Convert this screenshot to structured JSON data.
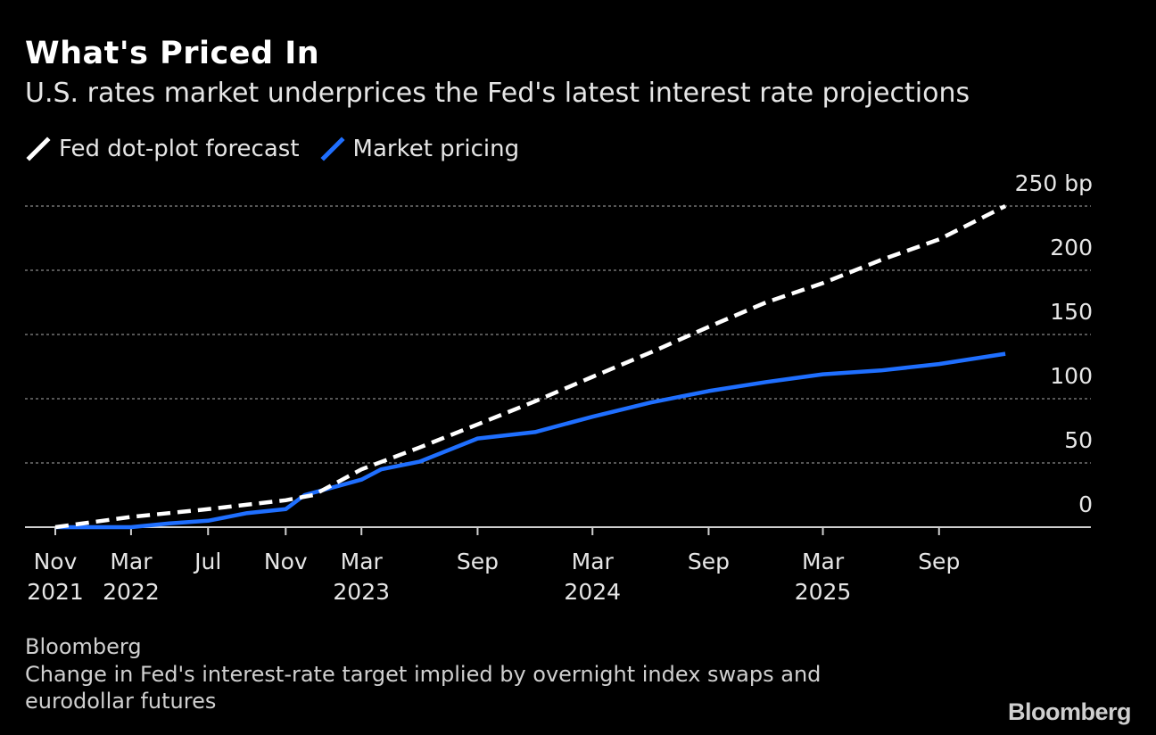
{
  "header": {
    "title": "What's Priced In",
    "subtitle": "U.S. rates market underprices the Fed's latest interest rate projections"
  },
  "legend": [
    {
      "label": "Fed dot-plot forecast",
      "color": "#ffffff"
    },
    {
      "label": "Market pricing",
      "color": "#1f6fff"
    }
  ],
  "footer": {
    "source": "Bloomberg",
    "note_line1": "Change in Fed's interest-rate target implied by overnight index swaps and",
    "note_line2": "eurodollar futures",
    "brand": "Bloomberg"
  },
  "chart_data": {
    "type": "line",
    "x_axis": {
      "range": [
        "2021-11-01",
        "2026-01-15"
      ],
      "ticks": [
        {
          "date": "2021-11-01",
          "label": "Nov",
          "year": "2021"
        },
        {
          "date": "2022-03-01",
          "label": "Mar",
          "year": "2022"
        },
        {
          "date": "2022-07-01",
          "label": "Jul",
          "year": ""
        },
        {
          "date": "2022-11-01",
          "label": "Nov",
          "year": ""
        },
        {
          "date": "2023-03-01",
          "label": "Mar",
          "year": "2023"
        },
        {
          "date": "2023-09-01",
          "label": "Sep",
          "year": ""
        },
        {
          "date": "2024-03-01",
          "label": "Mar",
          "year": "2024"
        },
        {
          "date": "2024-09-01",
          "label": "Sep",
          "year": ""
        },
        {
          "date": "2025-03-01",
          "label": "Mar",
          "year": "2025"
        },
        {
          "date": "2025-09-01",
          "label": "Sep",
          "year": ""
        }
      ]
    },
    "y_axis": {
      "range": [
        0,
        250
      ],
      "ticks": [
        0,
        50,
        100,
        150,
        200,
        250
      ],
      "tick_labels": [
        "0",
        "50",
        "100",
        "150",
        "200",
        "250 bp"
      ],
      "grid": true,
      "position": "right"
    },
    "series": [
      {
        "name": "Fed dot-plot forecast",
        "color": "#ffffff",
        "style": "dashed",
        "points": [
          {
            "x": "2021-11-01",
            "y": 0
          },
          {
            "x": "2022-03-01",
            "y": 8
          },
          {
            "x": "2022-07-01",
            "y": 14
          },
          {
            "x": "2022-11-01",
            "y": 21
          },
          {
            "x": "2022-12-15",
            "y": 25
          },
          {
            "x": "2023-03-01",
            "y": 45
          },
          {
            "x": "2023-06-01",
            "y": 62
          },
          {
            "x": "2023-09-01",
            "y": 80
          },
          {
            "x": "2023-12-01",
            "y": 98
          },
          {
            "x": "2024-03-01",
            "y": 117
          },
          {
            "x": "2024-06-01",
            "y": 136
          },
          {
            "x": "2024-09-01",
            "y": 156
          },
          {
            "x": "2024-12-01",
            "y": 175
          },
          {
            "x": "2025-03-01",
            "y": 190
          },
          {
            "x": "2025-06-01",
            "y": 208
          },
          {
            "x": "2025-09-01",
            "y": 224
          },
          {
            "x": "2025-12-15",
            "y": 250
          }
        ]
      },
      {
        "name": "Market pricing",
        "color": "#1f6fff",
        "style": "solid",
        "points": [
          {
            "x": "2021-11-01",
            "y": 0
          },
          {
            "x": "2022-03-01",
            "y": 0
          },
          {
            "x": "2022-05-01",
            "y": 3
          },
          {
            "x": "2022-07-01",
            "y": 5
          },
          {
            "x": "2022-09-01",
            "y": 11
          },
          {
            "x": "2022-11-01",
            "y": 14
          },
          {
            "x": "2022-12-01",
            "y": 25
          },
          {
            "x": "2023-03-01",
            "y": 37
          },
          {
            "x": "2023-04-01",
            "y": 45
          },
          {
            "x": "2023-06-01",
            "y": 51
          },
          {
            "x": "2023-09-01",
            "y": 69
          },
          {
            "x": "2023-12-01",
            "y": 74
          },
          {
            "x": "2024-03-01",
            "y": 86
          },
          {
            "x": "2024-06-01",
            "y": 97
          },
          {
            "x": "2024-09-01",
            "y": 106
          },
          {
            "x": "2024-12-01",
            "y": 113
          },
          {
            "x": "2025-03-01",
            "y": 119
          },
          {
            "x": "2025-06-01",
            "y": 122
          },
          {
            "x": "2025-09-01",
            "y": 127
          },
          {
            "x": "2025-12-15",
            "y": 135
          }
        ]
      }
    ]
  }
}
